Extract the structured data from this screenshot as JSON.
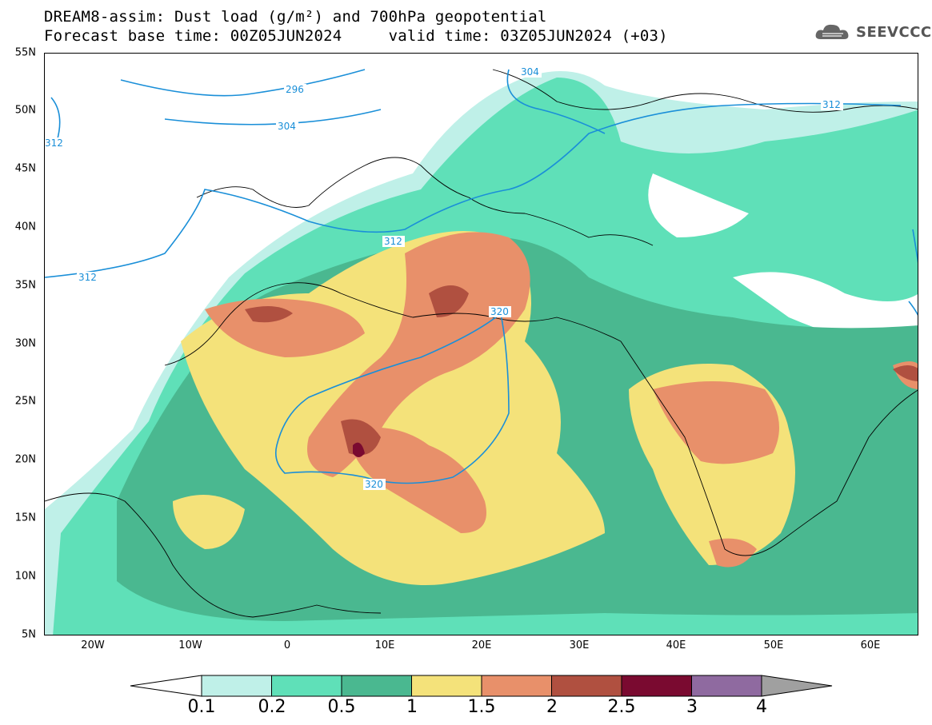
{
  "title": {
    "line1": "DREAM8-assim: Dust load (g/m²) and 700hPa geopotential",
    "line2": "Forecast base time: 00Z05JUN2024     valid time: 03Z05JUN2024 (+03)"
  },
  "logo": {
    "text": "SEEVCCC",
    "icon": "cloud-logo-icon"
  },
  "map": {
    "lat_labels": [
      "55N",
      "50N",
      "45N",
      "40N",
      "35N",
      "30N",
      "25N",
      "20N",
      "15N",
      "10N",
      "5N"
    ],
    "lon_labels": [
      "20W",
      "10W",
      "0",
      "10E",
      "20E",
      "30E",
      "40E",
      "50E",
      "60E"
    ],
    "contours": [
      {
        "label": "296"
      },
      {
        "label": "304"
      },
      {
        "label": "304"
      },
      {
        "label": "312"
      },
      {
        "label": "312"
      },
      {
        "label": "312"
      },
      {
        "label": "312"
      },
      {
        "label": "320"
      },
      {
        "label": "320"
      }
    ],
    "contour_color": "#1a8fd8"
  },
  "colorbar": {
    "ticks": [
      "0.1",
      "0.2",
      "0.5",
      "1",
      "1.5",
      "2",
      "2.5",
      "3",
      "4"
    ],
    "colors": [
      "#bff0e8",
      "#5fe0b8",
      "#4ab890",
      "#f4e27a",
      "#e8906a",
      "#b05040",
      "#7a0a30",
      "#8f6aa0"
    ],
    "under_color": "#ffffff",
    "over_color": "#a0a0a0"
  }
}
